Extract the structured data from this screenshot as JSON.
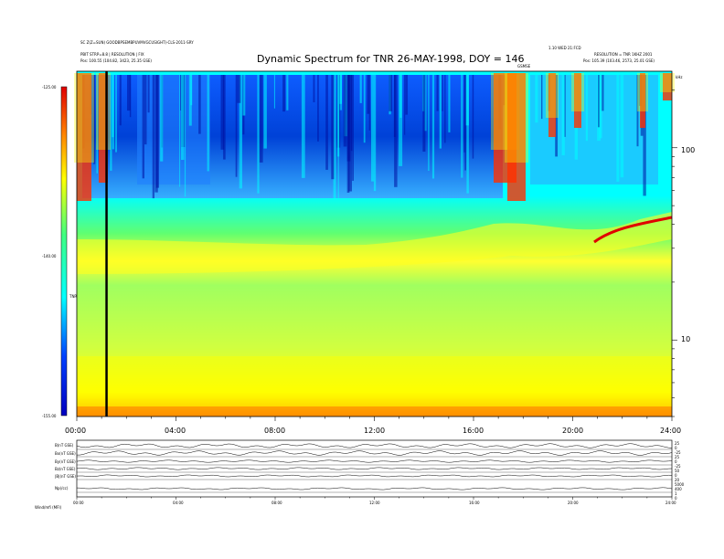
{
  "chart_data": {
    "type": "heatmap",
    "title": "Dynamic Spectrum for TNR 26-MAY-1998, DOY = 146",
    "ylabel": "kHz",
    "x": [
      "00:00",
      "04:00",
      "08:00",
      "12:00",
      "16:00",
      "20:00",
      "24:00"
    ],
    "xlim": [
      0,
      24
    ],
    "y_scale": "log",
    "yticks": [
      "100",
      "10"
    ],
    "ylim_khz": [
      4,
      250
    ],
    "colorbar": {
      "label": "TNR",
      "ticks": [
        "-125.00",
        "-140.00",
        "-155.00"
      ],
      "range": [
        -155,
        -125
      ],
      "colors": [
        "#0000c0",
        "#0040ff",
        "#00ffff",
        "#40ff80",
        "#ffff00",
        "#ff8000",
        "#e00000"
      ]
    },
    "marker_line_hour": 1.2,
    "header_left": [
      "SC Z(Z=SUN) GOODBPSEMBPUVMVGCUSIGHT)-CLS-2011-SRY",
      "PBIT STRP=8.8 | RESOLUTION | FIX",
      "Pos:   100.55 (104.82, 3423, 25.35 GSE)"
    ],
    "header_right": [
      "1.10 WED 21:FCD",
      "RESOLUTION = TNR 1KHZ 2001",
      "Pos:   105.39 (103.46, 2573, 25.01 GSE)"
    ],
    "header_mid": "GSMSE",
    "bottom_panel": {
      "rows": [
        "B(nT GSE)",
        "Bx(nT GSE)",
        "By(nT GSE)",
        "Bz(nT GSE)",
        "|B|(nT GSE)",
        "Np(/cc)"
      ],
      "right_ticks": [
        "25",
        "0",
        "-25",
        "25",
        "0",
        "-25",
        "50",
        "0",
        "20",
        "5000",
        "400",
        "1",
        "0"
      ],
      "x_ticks": [
        "00:00",
        "04:00",
        "08:00",
        "12:00",
        "16:00",
        "20:00",
        "24:00"
      ],
      "footer": "Wind/mfi (MFI)"
    }
  }
}
